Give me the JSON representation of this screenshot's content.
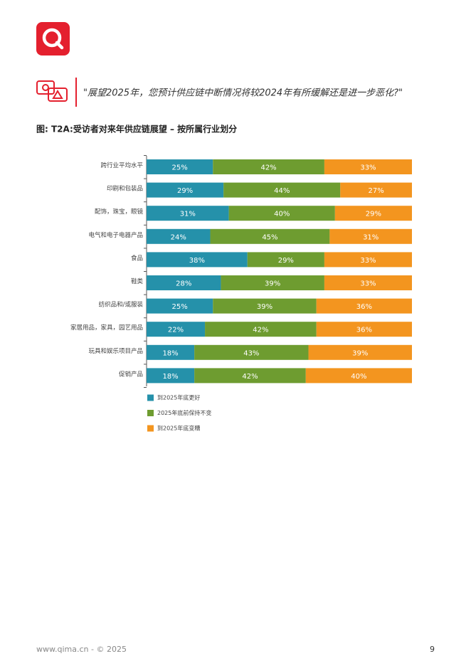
{
  "quote": "\"展望2025年，您预计供应链中断情况将较2024年有所缓解还是进一步恶化?\"",
  "chart_data": {
    "type": "bar",
    "stacked": true,
    "orientation": "horizontal",
    "title": "图: T2A:受访者对来年供应链展望 – 按所属行业划分",
    "categories": [
      "跨行业平均水平",
      "印刷和包装品",
      "配饰，珠宝，眼镜",
      "电气和电子电器产品",
      "食品",
      "鞋类",
      "纺织品和/或服装",
      "家居用品，家具，园艺用品",
      "玩具和娱乐项目产品",
      "促销产品"
    ],
    "series": [
      {
        "name": "到2025年底更好",
        "color": "#2591aa",
        "values": [
          25,
          29,
          31,
          24,
          38,
          28,
          25,
          22,
          18,
          18
        ],
        "value_labels": [
          "25%",
          "29%",
          "31%",
          "24%",
          "38%",
          "28%",
          "25%",
          "22%",
          "18%",
          "18%"
        ]
      },
      {
        "name": "2025年底前保持不变",
        "color": "#6e9c30",
        "values": [
          42,
          44,
          40,
          45,
          29,
          39,
          39,
          42,
          43,
          42
        ],
        "value_labels": [
          "42%",
          "44%",
          "40%",
          "45%",
          "29%",
          "39%",
          "39%",
          "42%",
          "43%",
          "42%"
        ]
      },
      {
        "name": "到2025年底变糟",
        "color": "#f3951f",
        "values": [
          33,
          27,
          29,
          31,
          33,
          33,
          36,
          36,
          39,
          40
        ],
        "value_labels": [
          "33%",
          "27%",
          "29%",
          "31%",
          "33%",
          "33%",
          "36%",
          "36%",
          "39%",
          "40%"
        ]
      }
    ]
  },
  "footer": {
    "site": "www.qima.cn - © 2025",
    "page": "9"
  }
}
